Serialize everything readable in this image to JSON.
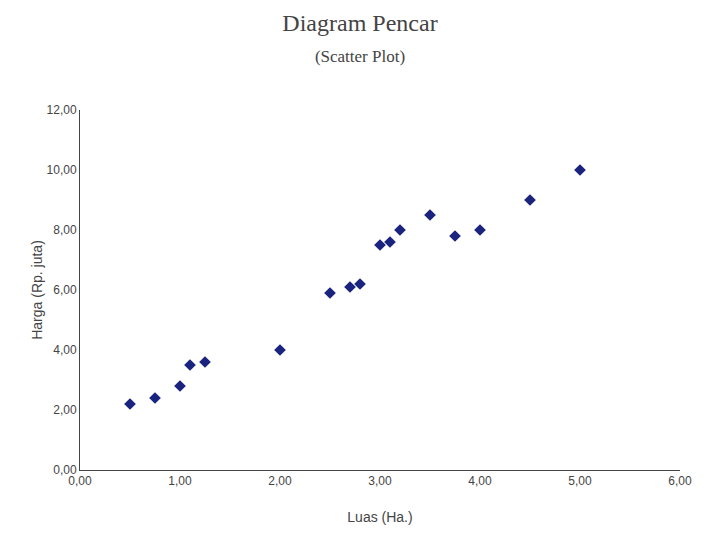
{
  "chart_data": {
    "type": "scatter",
    "title": "Diagram Pencar",
    "subtitle": "(Scatter Plot)",
    "xlabel": "Luas (Ha.)",
    "ylabel": "Harga (Rp. juta)",
    "x": [
      0.5,
      0.75,
      1.0,
      1.1,
      1.25,
      2.0,
      2.5,
      2.7,
      2.8,
      3.0,
      3.1,
      3.2,
      3.5,
      3.75,
      4.0,
      4.5,
      5.0
    ],
    "values": [
      2.2,
      2.4,
      2.8,
      3.5,
      3.6,
      4.0,
      5.9,
      6.1,
      6.2,
      7.5,
      7.6,
      8.0,
      8.5,
      7.8,
      8.0,
      9.0,
      10.0
    ],
    "color": "#1a237e",
    "marker": "diamond",
    "xlim": [
      0,
      6
    ],
    "ylim": [
      0,
      12
    ],
    "xticks": [
      {
        "value": 0,
        "label": "0,00"
      },
      {
        "value": 1,
        "label": "1,00"
      },
      {
        "value": 2,
        "label": "2,00"
      },
      {
        "value": 3,
        "label": "3,00"
      },
      {
        "value": 4,
        "label": "4,00"
      },
      {
        "value": 5,
        "label": "5,00"
      },
      {
        "value": 6,
        "label": "6,00"
      }
    ],
    "yticks": [
      {
        "value": 0,
        "label": "0,00"
      },
      {
        "value": 2,
        "label": "2,00"
      },
      {
        "value": 4,
        "label": "4,00"
      },
      {
        "value": 6,
        "label": "6,00"
      },
      {
        "value": 8,
        "label": "8,00"
      },
      {
        "value": 10,
        "label": "10,00"
      },
      {
        "value": 12,
        "label": "12,00"
      }
    ],
    "grid": false
  }
}
